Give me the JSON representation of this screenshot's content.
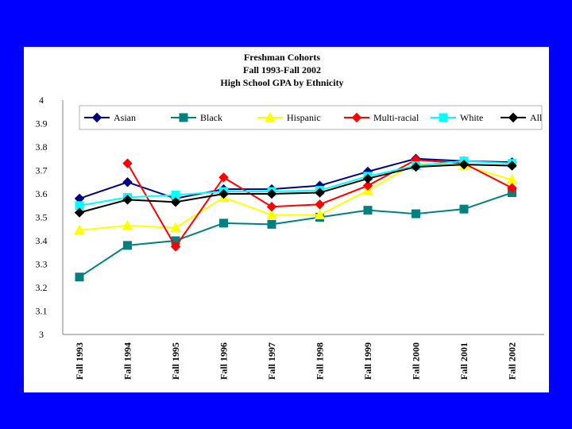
{
  "chart_data": {
    "type": "line",
    "title": [
      "Freshman Cohorts",
      "Fall 1993-Fall 2002",
      "High School GPA by Ethnicity"
    ],
    "xlabel": "",
    "ylabel": "",
    "categories": [
      "Fall 1993",
      "Fall 1994",
      "Fall 1995",
      "Fall 1996",
      "Fall 1997",
      "Fall 1998",
      "Fall 1999",
      "Fall 2000",
      "Fall 2001",
      "Fall 2002"
    ],
    "yticks": [
      "4",
      "3.9",
      "3.8",
      "3.7",
      "3.6",
      "3.5",
      "3.4",
      "3.3",
      "3.2",
      "3.1",
      "3"
    ],
    "ylim": [
      3,
      4
    ],
    "grid": false,
    "legend_position": "top",
    "series": [
      {
        "name": "Asian",
        "color": "#000080",
        "marker": "diamond",
        "values": [
          3.58,
          3.65,
          3.58,
          3.62,
          3.62,
          3.635,
          3.695,
          3.75,
          3.74,
          3.735
        ]
      },
      {
        "name": "Black",
        "color": "#008080",
        "marker": "square",
        "values": [
          3.245,
          3.38,
          3.4,
          3.475,
          3.47,
          3.5,
          3.53,
          3.515,
          3.535,
          3.605
        ]
      },
      {
        "name": "Hispanic",
        "color": "#FFFF00",
        "marker": "triangle",
        "values": [
          3.445,
          3.465,
          3.455,
          3.585,
          3.51,
          3.51,
          3.615,
          3.73,
          3.72,
          3.66
        ]
      },
      {
        "name": "Multi-racial",
        "color": "#FF0000",
        "marker": "diamond",
        "values": [
          null,
          3.73,
          3.375,
          3.67,
          3.545,
          3.555,
          3.635,
          3.745,
          3.73,
          3.625
        ]
      },
      {
        "name": "White",
        "color": "#00FFFF",
        "marker": "square",
        "values": [
          3.55,
          3.585,
          3.595,
          3.61,
          3.61,
          3.615,
          3.675,
          3.72,
          3.74,
          3.73
        ]
      },
      {
        "name": "All",
        "color": "#000000",
        "marker": "diamond",
        "values": [
          3.52,
          3.575,
          3.565,
          3.6,
          3.6,
          3.605,
          3.665,
          3.715,
          3.725,
          3.72
        ]
      }
    ]
  }
}
